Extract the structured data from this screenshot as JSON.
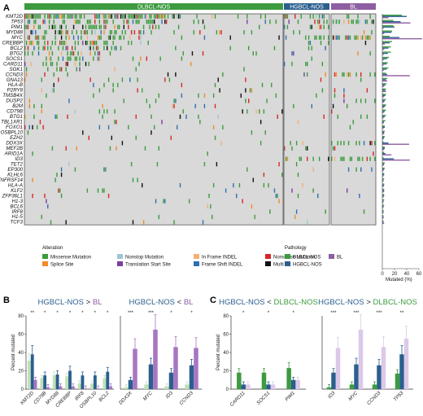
{
  "panel_labels": {
    "a": "A",
    "b": "B",
    "c": "C"
  },
  "groups": [
    {
      "name": "DLBCL-NOS",
      "color": "#3c9b3f"
    },
    {
      "name": "HGBCL-NOS",
      "color": "#2b5f8e"
    },
    {
      "name": "BL",
      "color": "#8e5ea2"
    }
  ],
  "genes": [
    "KMT2D",
    "TP53",
    "PIM1",
    "MYD88",
    "MYC",
    "CREBBP",
    "BCL2",
    "BTG2",
    "SOCS1",
    "CARD11",
    "SGK1",
    "CCND3",
    "GNA13",
    "HLA-B",
    "P2RY8",
    "TMSB4X",
    "DUSP2",
    "B2M",
    "CD79B",
    "BTG1",
    "TBL1XR1",
    "FOXO1",
    "OSBPL10",
    "EZH2",
    "DDX3X",
    "MEF2B",
    "ARID1A",
    "ID3",
    "TET2",
    "EP300",
    "KLHL6",
    "TNFRSF14",
    "HLA-A",
    "KLF2",
    "ZFP36L1",
    "H1-3",
    "BCL6",
    "IRF8",
    "H1-5",
    "TCF3"
  ],
  "alteration_legend": {
    "title": "Alteration",
    "items": [
      {
        "label": "Missense Mutation",
        "color": "#3a9c3c"
      },
      {
        "label": "Nonstop Mutation",
        "color": "#9ec6d6"
      },
      {
        "label": "In Frame INDEL",
        "color": "#f2b074"
      },
      {
        "label": "Nonsense Mutation",
        "color": "#d62728"
      },
      {
        "label": "Splice Site",
        "color": "#f28c28"
      },
      {
        "label": "Translation Start Site",
        "color": "#7b3f9e"
      },
      {
        "label": "Frame Shift INDEL",
        "color": "#2f6fb3"
      },
      {
        "label": "Multi Hit",
        "color": "#111111"
      }
    ]
  },
  "pathology_legend": {
    "title": "Pathology",
    "items": [
      {
        "label": "DLBCL-NOS",
        "color": "#3c9b3f"
      },
      {
        "label": "BL",
        "color": "#8e5ea2"
      },
      {
        "label": "HGBCL-NOS",
        "color": "#2b5f8e"
      }
    ]
  },
  "mutated_axis": {
    "label": "Mutated (%)",
    "ticks": [
      "0",
      "20",
      "40",
      "60"
    ]
  },
  "chart_data": [
    {
      "type": "heatmap",
      "panel": "A",
      "rows": "genes",
      "columns": [
        "DLBCL-NOS",
        "HGBCL-NOS",
        "BL"
      ],
      "right_bar_xlim": [
        0,
        60
      ],
      "right_bar_series": [
        {
          "name": "DLBCL-NOS",
          "color": "#3c9b3f",
          "values": [
            32,
            18,
            18,
            16,
            12,
            16,
            14,
            14,
            11,
            9,
            10,
            6,
            8,
            7,
            6,
            6,
            6,
            6,
            6,
            6,
            5,
            4,
            4,
            4,
            2,
            4,
            3,
            2,
            4,
            4,
            3,
            3,
            3,
            3,
            3,
            3,
            3,
            2,
            2,
            2
          ]
        },
        {
          "name": "HGBCL-NOS",
          "color": "#2b5f8e",
          "values": [
            40,
            30,
            20,
            15,
            28,
            12,
            10,
            9,
            8,
            7,
            7,
            8,
            6,
            5,
            5,
            5,
            4,
            5,
            4,
            4,
            3,
            4,
            3,
            3,
            10,
            4,
            5,
            19,
            3,
            3,
            3,
            2,
            3,
            3,
            3,
            2,
            2,
            2,
            2,
            2
          ]
        },
        {
          "name": "BL",
          "color": "#8e5ea2",
          "values": [
            10,
            46,
            2,
            3,
            65,
            4,
            3,
            2,
            2,
            2,
            2,
            45,
            8,
            3,
            6,
            3,
            3,
            3,
            2,
            2,
            2,
            2,
            3,
            2,
            44,
            3,
            15,
            45,
            2,
            2,
            2,
            2,
            2,
            3,
            2,
            2,
            2,
            2,
            2,
            3
          ]
        }
      ]
    },
    {
      "type": "bar",
      "panel": "B",
      "title": "HGBCL-NOS > BL",
      "ylabel": "Percent mutated",
      "ylim": [
        0,
        80
      ],
      "yticks": [
        0,
        20,
        40,
        60,
        80
      ],
      "categories": [
        "KMT2D",
        "CD79B",
        "MYD88",
        "CREBBP",
        "IRF8",
        "OSBPL10",
        "BCL2"
      ],
      "significance": [
        "**",
        "*",
        "*",
        "*",
        "*",
        "*",
        "*"
      ],
      "series": [
        {
          "name": "DLBCL-NOS",
          "color": "#bfe0b6",
          "values": [
            31,
            12,
            15,
            14,
            6,
            6,
            12
          ]
        },
        {
          "name": "HGBCL-NOS",
          "color": "#2b5f8e",
          "values": [
            38,
            15,
            16,
            20,
            15,
            15,
            19
          ]
        },
        {
          "name": "BL",
          "color": "#a777c2",
          "values": [
            10,
            2,
            3,
            3,
            0.5,
            0.5,
            3
          ]
        }
      ]
    },
    {
      "type": "bar",
      "panel": "B",
      "title": "HGBCL-NOS < BL",
      "ylim": [
        0,
        80
      ],
      "categories": [
        "DDX3X",
        "MYC",
        "ID3",
        "CCND3"
      ],
      "significance": [
        "***",
        "***",
        "*",
        "*"
      ],
      "series": [
        {
          "name": "DLBCL-NOS",
          "color": "#bfe0b6",
          "values": [
            2,
            5,
            3,
            5
          ]
        },
        {
          "name": "HGBCL-NOS",
          "color": "#2b5f8e",
          "values": [
            10,
            27,
            18,
            26
          ]
        },
        {
          "name": "BL",
          "color": "#a777c2",
          "values": [
            44,
            65,
            46,
            45
          ]
        }
      ]
    },
    {
      "type": "bar",
      "panel": "C",
      "title": "HGBCL-NOS < DLBCL-NOS",
      "ylabel": "Percent mutated",
      "ylim": [
        0,
        80
      ],
      "yticks": [
        0,
        20,
        40,
        60,
        80
      ],
      "categories": [
        "CARD11",
        "SOCS1",
        "PIM1"
      ],
      "significance": [
        "*",
        "*",
        "*"
      ],
      "series": [
        {
          "name": "DLBCL-NOS",
          "color": "#3c9b3f",
          "values": [
            18,
            18,
            23
          ]
        },
        {
          "name": "HGBCL-NOS",
          "color": "#2b5f8e",
          "values": [
            5,
            5,
            10
          ]
        },
        {
          "name": "BL",
          "color": "#dcc9e8",
          "values": [
            5,
            5,
            10
          ]
        }
      ]
    },
    {
      "type": "bar",
      "panel": "C",
      "title": "HGBCL-NOS > DLBCL-NOS",
      "ylim": [
        0,
        80
      ],
      "categories": [
        "ID3",
        "MYC",
        "CCND3",
        "TP53"
      ],
      "significance": [
        "***",
        "***",
        "***",
        "**"
      ],
      "series": [
        {
          "name": "DLBCL-NOS",
          "color": "#3c9b3f",
          "values": [
            2,
            5,
            5,
            17
          ]
        },
        {
          "name": "HGBCL-NOS",
          "color": "#2b5f8e",
          "values": [
            18,
            27,
            26,
            38
          ]
        },
        {
          "name": "BL",
          "color": "#dcc9e8",
          "values": [
            45,
            65,
            46,
            55
          ]
        }
      ]
    }
  ]
}
